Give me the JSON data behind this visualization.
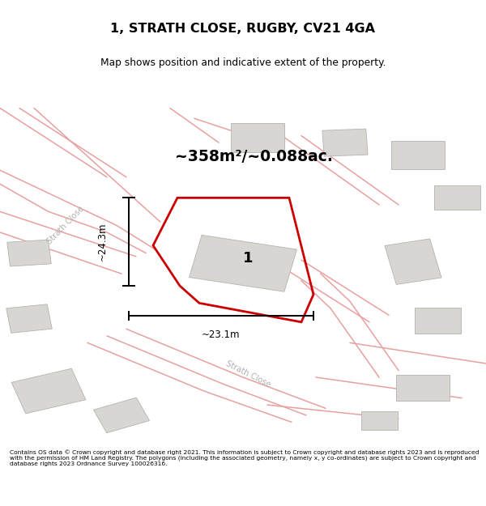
{
  "title": "1, STRATH CLOSE, RUGBY, CV21 4GA",
  "subtitle": "Map shows position and indicative extent of the property.",
  "area_text": "~358m²/~0.088ac.",
  "label_number": "1",
  "dim_vertical": "~24.3m",
  "dim_horizontal": "~23.1m",
  "footer": "Contains OS data © Crown copyright and database right 2021. This information is subject to Crown copyright and database rights 2023 and is reproduced with the permission of HM Land Registry. The polygons (including the associated geometry, namely x, y co-ordinates) are subject to Crown copyright and database rights 2023 Ordnance Survey 100026316.",
  "map_bg": "#eeece8",
  "road_color": "#e8a0a0",
  "building_color": "#d8d6d2",
  "property_stroke": "#cc0000",
  "dim_color": "#000000",
  "street_label_color": "#b0b0b0"
}
